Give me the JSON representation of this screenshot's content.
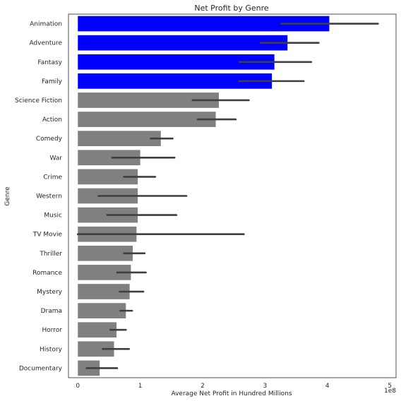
{
  "chart_data": {
    "type": "bar",
    "orientation": "horizontal",
    "title": "Net Profit by Genre",
    "xlabel": "Average Net Profit in Hundred Millions",
    "ylabel": "Genre",
    "x_offset_label": "1e8",
    "xlim": [
      -0.15,
      5.1
    ],
    "x_ticks": [
      0,
      1,
      2,
      3,
      4,
      5
    ],
    "x_tick_labels": [
      "0",
      "1",
      "2",
      "3",
      "4",
      "5"
    ],
    "grid": false,
    "categories": [
      "Animation",
      "Adventure",
      "Fantasy",
      "Family",
      "Science Fiction",
      "Action",
      "Comedy",
      "War",
      "Crime",
      "Western",
      "Music",
      "TV Movie",
      "Thriller",
      "Romance",
      "Mystery",
      "Drama",
      "Horror",
      "History",
      "Documentary"
    ],
    "values": [
      4.03,
      3.36,
      3.15,
      3.11,
      2.26,
      2.21,
      1.33,
      1.0,
      0.96,
      0.96,
      0.96,
      0.94,
      0.88,
      0.85,
      0.83,
      0.77,
      0.62,
      0.58,
      0.35
    ],
    "ci_low": [
      3.26,
      2.93,
      2.59,
      2.58,
      1.84,
      1.92,
      1.17,
      0.55,
      0.74,
      0.33,
      0.47,
      0.0,
      0.74,
      0.63,
      0.67,
      0.68,
      0.52,
      0.4,
      0.14
    ],
    "ci_high": [
      4.81,
      3.86,
      3.74,
      3.62,
      2.74,
      2.53,
      1.52,
      1.55,
      1.24,
      1.74,
      1.58,
      2.66,
      1.07,
      1.09,
      1.05,
      0.87,
      0.77,
      0.82,
      0.63
    ],
    "colors": [
      "#0000ff",
      "#0000ff",
      "#0000ff",
      "#0000ff",
      "#808080",
      "#808080",
      "#808080",
      "#808080",
      "#808080",
      "#808080",
      "#808080",
      "#808080",
      "#808080",
      "#808080",
      "#808080",
      "#808080",
      "#808080",
      "#808080",
      "#808080"
    ],
    "errorbar_color": "#3f3f3f",
    "frame_color": "#262626"
  }
}
